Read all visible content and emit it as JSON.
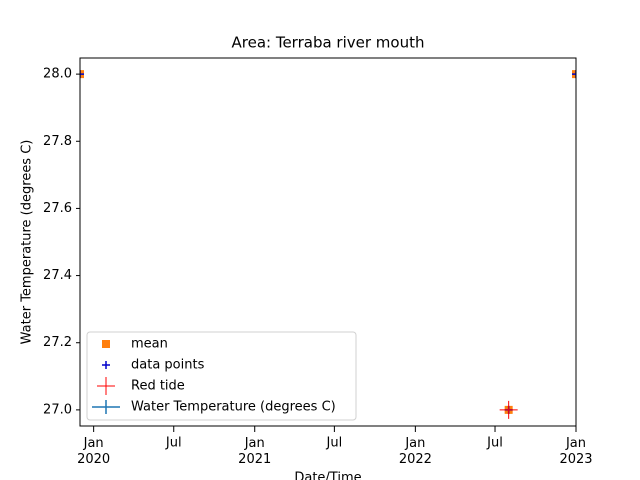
{
  "chart_data": {
    "type": "scatter",
    "title": "Area: Terraba river mouth",
    "x_label": "Date/Time",
    "y_label": "Water Temperature (degrees C)",
    "xlim": [
      "2019-12",
      "2023-01"
    ],
    "xticks": [
      {
        "value": "2020-01",
        "label": "Jan\n2020"
      },
      {
        "value": "2020-07",
        "label": "Jul"
      },
      {
        "value": "2021-01",
        "label": "Jan\n2021"
      },
      {
        "value": "2021-07",
        "label": "Jul"
      },
      {
        "value": "2022-01",
        "label": "Jan\n2022"
      },
      {
        "value": "2022-07",
        "label": "Jul"
      },
      {
        "value": "2023-01",
        "label": "Jan\n2023"
      }
    ],
    "ylim": [
      26.952,
      28.048
    ],
    "yticks": [
      {
        "value": 27,
        "label": "27.0"
      },
      27.2,
      27.4,
      27.6,
      27.8,
      {
        "value": 28,
        "label": "28.0"
      }
    ],
    "legend": "lower left",
    "series": [
      {
        "name": "mean",
        "color": "#ff7f0e",
        "marker": "square",
        "x": [
          "2019-12",
          "2022-08",
          "2023-01"
        ],
        "values": [
          28,
          27,
          28
        ]
      },
      {
        "name": "data points",
        "color": "#0000cc",
        "marker": "plus",
        "x": [
          "2019-12",
          "2022-08",
          "2023-01"
        ],
        "values": [
          28,
          27,
          28
        ]
      },
      {
        "name": "Red tide",
        "color": "#ff0000",
        "marker": "big-plus",
        "x": [
          "2022-08"
        ],
        "values": [
          27
        ]
      },
      {
        "name": "Water Temperature (degrees C)",
        "color": "#1f77b4",
        "marker": "errorbar",
        "x": [],
        "values": []
      }
    ]
  }
}
